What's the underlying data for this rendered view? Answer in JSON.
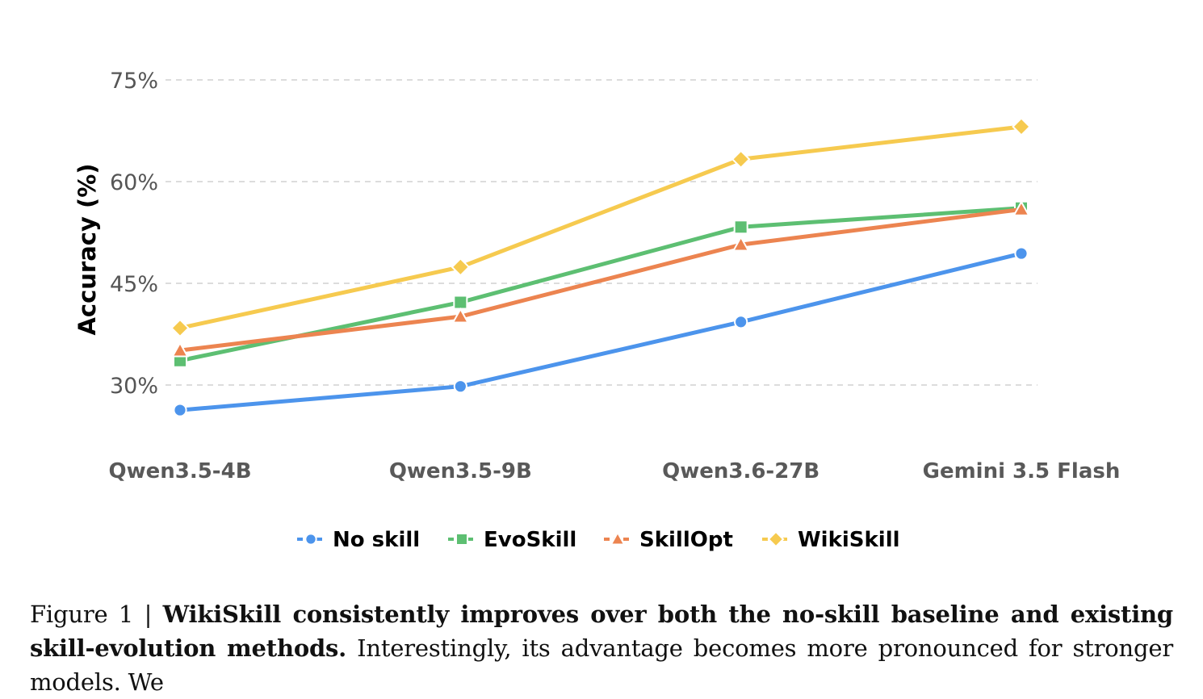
{
  "chart_data": {
    "type": "line",
    "ylabel": "Accuracy (%)",
    "xlabel": "",
    "categories": [
      "Qwen3.5-4B",
      "Qwen3.5-9B",
      "Qwen3.6-27B",
      "Gemini 3.5 Flash"
    ],
    "yticks": [
      30,
      45,
      60,
      75
    ],
    "ytick_labels": [
      "30%",
      "45%",
      "60%",
      "75%"
    ],
    "ylim": [
      22,
      80
    ],
    "grid": true,
    "legend_position": "bottom",
    "series": [
      {
        "name": "No skill",
        "color": "#4C94EC",
        "marker": "circle",
        "values": [
          26.3,
          29.8,
          39.3,
          49.4
        ]
      },
      {
        "name": "EvoSkill",
        "color": "#5DBF72",
        "marker": "square",
        "values": [
          33.6,
          42.2,
          53.3,
          56.1
        ]
      },
      {
        "name": "SkillOpt",
        "color": "#EC8450",
        "marker": "triangle",
        "values": [
          35.1,
          40.1,
          50.7,
          55.9
        ]
      },
      {
        "name": "WikiSkill",
        "color": "#F6CA4F",
        "marker": "diamond",
        "values": [
          38.4,
          47.4,
          63.3,
          68.1
        ]
      }
    ]
  },
  "caption": {
    "prefix": "Figure 1 | ",
    "bold": "WikiSkill consistently improves over both the no-skill baseline and existing skill-evolution methods.",
    "text": " Interestingly, its advantage becomes more pronounced for stronger models. We"
  }
}
